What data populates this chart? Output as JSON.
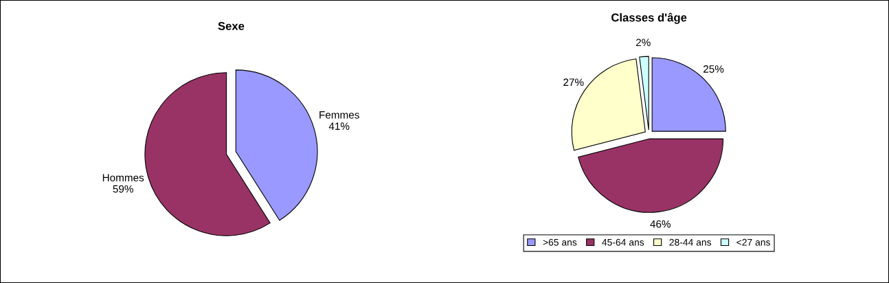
{
  "chart_data": [
    {
      "type": "pie",
      "title": "Sexe",
      "categories": [
        "Femmes",
        "Hommes"
      ],
      "values": [
        41,
        59
      ],
      "colors": [
        "#9999ff",
        "#993366"
      ],
      "value_labels": [
        "41%",
        "59%"
      ],
      "legend": false
    },
    {
      "type": "pie",
      "title": "Classes d'âge",
      "categories": [
        ">65 ans",
        "45-64 ans",
        "28-44 ans",
        "<27 ans"
      ],
      "values": [
        25,
        46,
        27,
        2
      ],
      "colors": [
        "#9999ff",
        "#993366",
        "#ffffcc",
        "#ccffff"
      ],
      "value_labels": [
        "25%",
        "46%",
        "27%",
        "2%"
      ],
      "legend": "bottom"
    }
  ]
}
